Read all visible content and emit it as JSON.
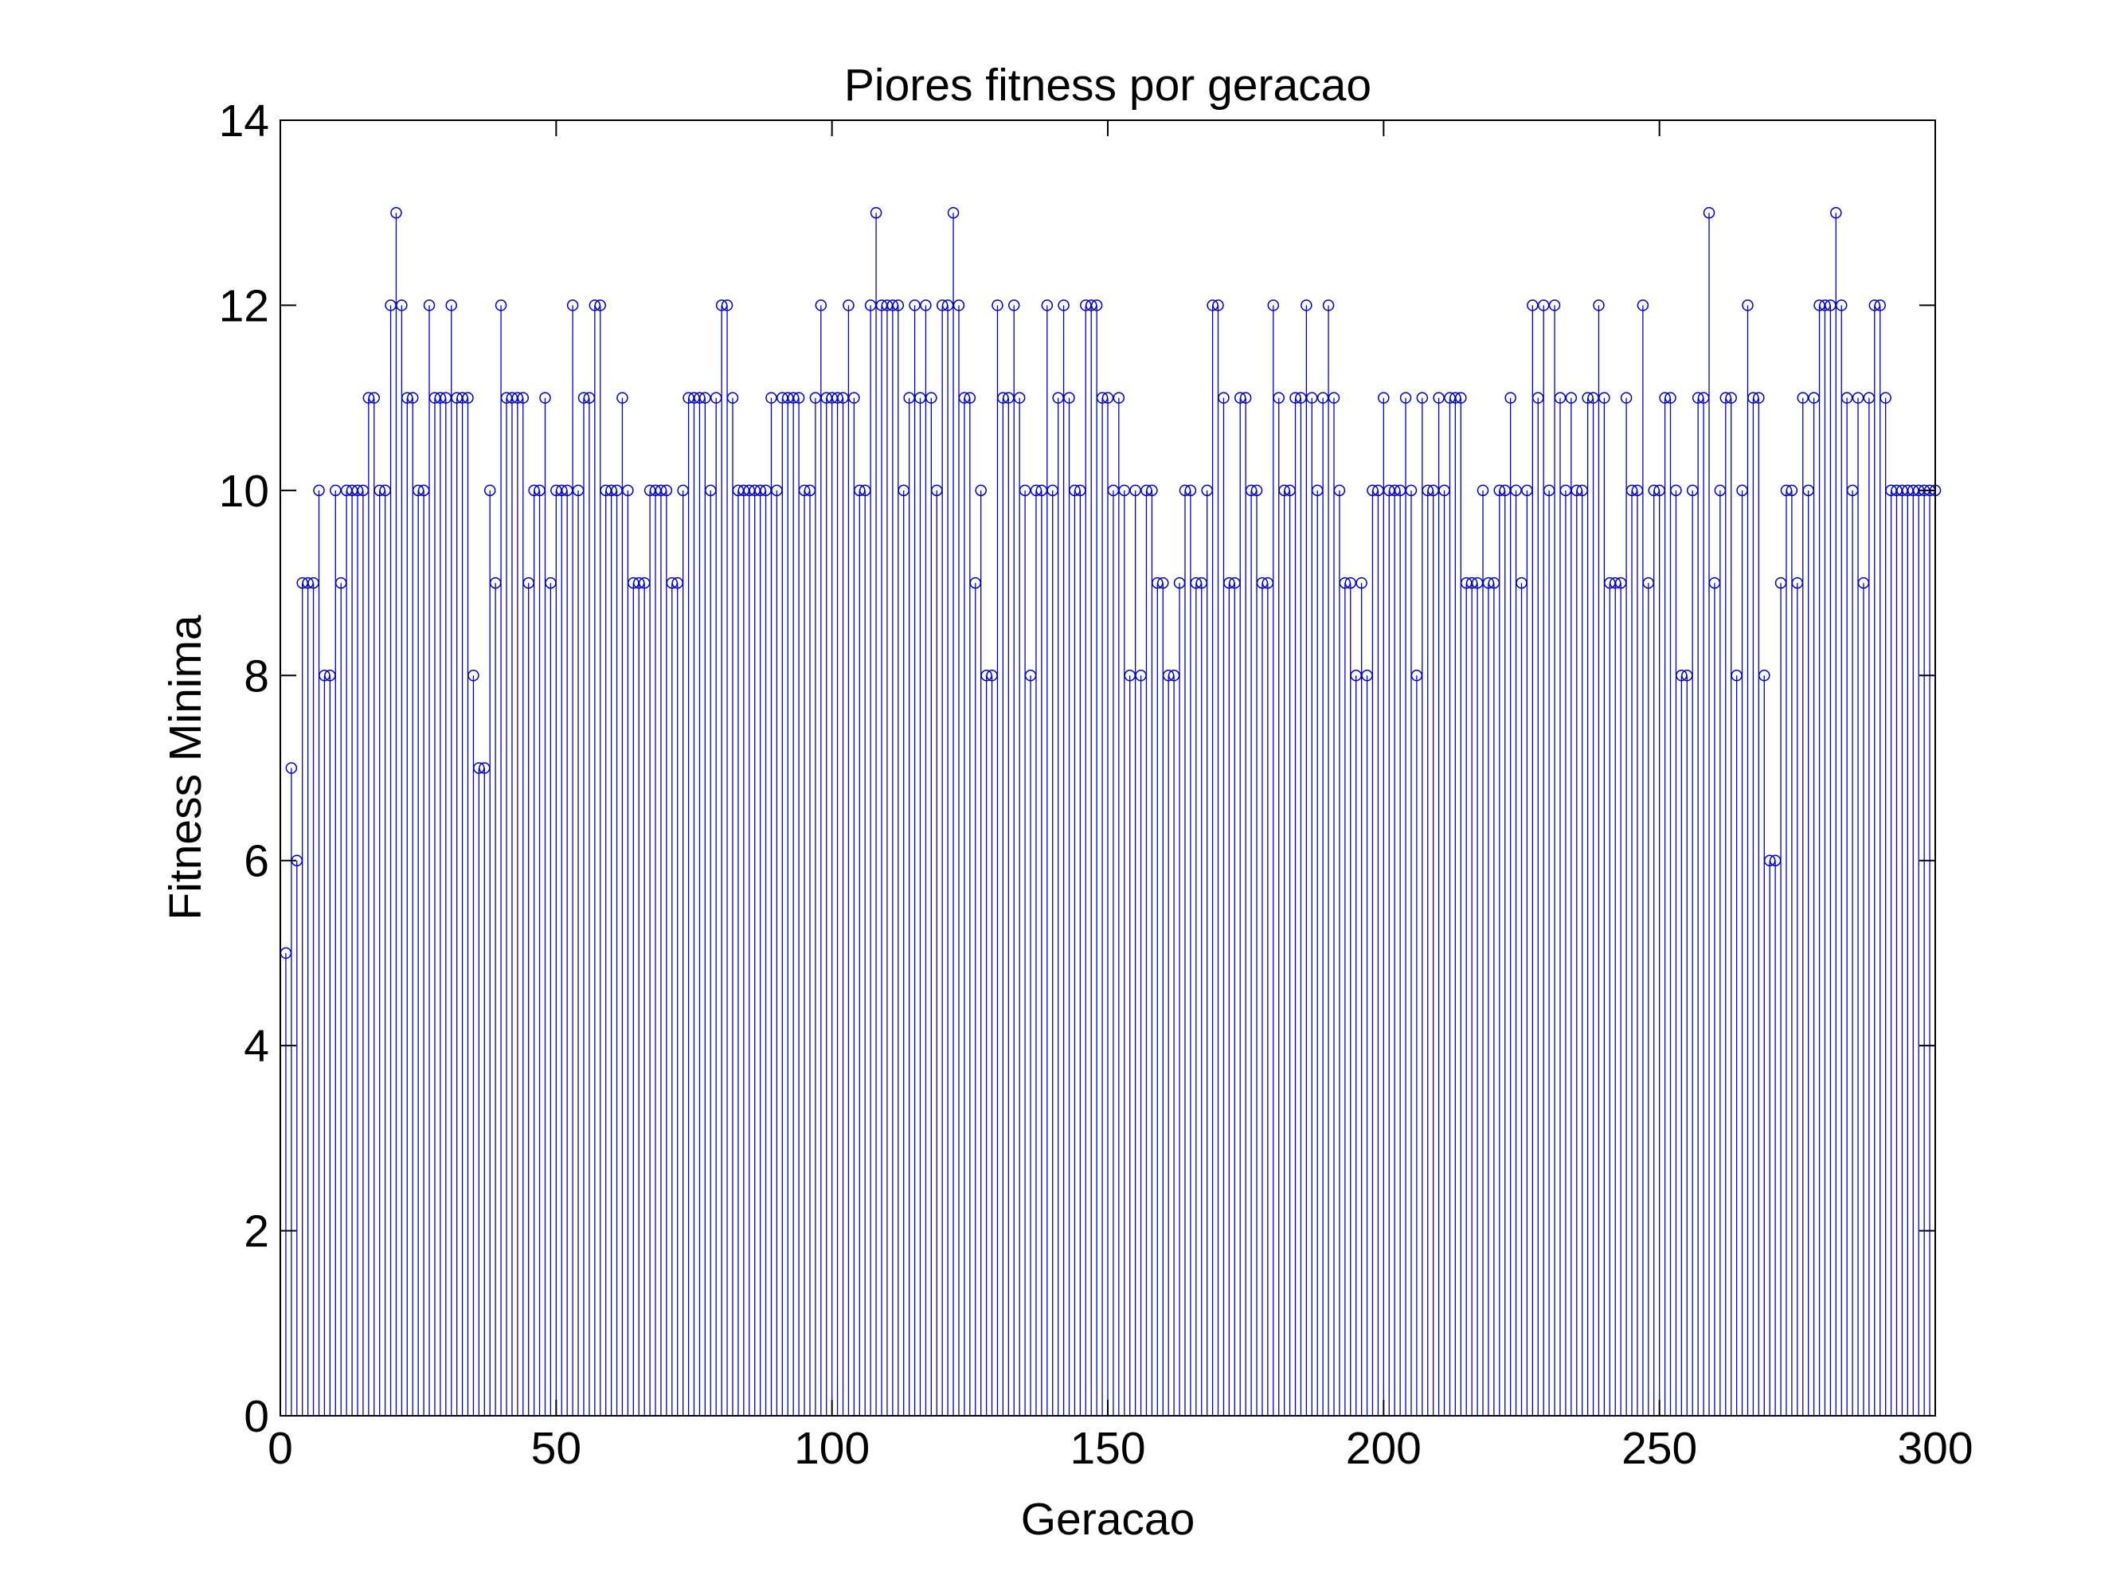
{
  "chart_data": {
    "type": "stem",
    "title": "Piores fitness por geracao",
    "xlabel": "Geracao",
    "ylabel": "Fitness Minima",
    "xlim": [
      0,
      300
    ],
    "ylim": [
      0,
      14
    ],
    "xticks": [
      0,
      50,
      100,
      150,
      200,
      250,
      300
    ],
    "yticks": [
      0,
      2,
      4,
      6,
      8,
      10,
      12,
      14
    ],
    "grid": false,
    "legend": "none",
    "color": "#0000cc",
    "marker": "circle-open",
    "series": [
      {
        "x_start": 1,
        "x_step": 1,
        "values": [
          5,
          7,
          6,
          9,
          9,
          9,
          10,
          8,
          8,
          10,
          9,
          10,
          10,
          10,
          10,
          11,
          11,
          10,
          10,
          12,
          13,
          12,
          11,
          11,
          10,
          10,
          12,
          11,
          11,
          11,
          12,
          11,
          11,
          11,
          8,
          7,
          7,
          10,
          9,
          12,
          11,
          11,
          11,
          11,
          9,
          10,
          10,
          11,
          9,
          10,
          10,
          10,
          12,
          10,
          11,
          11,
          12,
          12,
          10,
          10,
          10,
          11,
          10,
          9,
          9,
          9,
          10,
          10,
          10,
          10,
          9,
          9,
          10,
          11,
          11,
          11,
          11,
          10,
          11,
          12,
          12,
          11,
          10,
          10,
          10,
          10,
          10,
          10,
          11,
          10,
          11,
          11,
          11,
          11,
          10,
          10,
          11,
          12,
          11,
          11,
          11,
          11,
          12,
          11,
          10,
          10,
          12,
          13,
          12,
          12,
          12,
          12,
          10,
          11,
          12,
          11,
          12,
          11,
          10,
          12,
          12,
          13,
          12,
          11,
          11,
          9,
          10,
          8,
          8,
          12,
          11,
          11,
          12,
          11,
          10,
          8,
          10,
          10,
          12,
          10,
          11,
          12,
          11,
          10,
          10,
          12,
          12,
          12,
          11,
          11,
          10,
          11,
          10,
          8,
          10,
          8,
          10,
          10,
          9,
          9,
          8,
          8,
          9,
          10,
          10,
          9,
          9,
          10,
          12,
          12,
          11,
          9,
          9,
          11,
          11,
          10,
          10,
          9,
          9,
          12,
          11,
          10,
          10,
          11,
          11,
          12,
          11,
          10,
          11,
          12,
          11,
          10,
          9,
          9,
          8,
          9,
          8,
          10,
          10,
          11,
          10,
          10,
          10,
          11,
          10,
          8,
          11,
          10,
          10,
          11,
          10,
          11,
          11,
          11,
          9,
          9,
          9,
          10,
          9,
          9,
          10,
          10,
          11,
          10,
          9,
          10,
          12,
          11,
          12,
          10,
          12,
          11,
          10,
          11,
          10,
          10,
          11,
          11,
          12,
          11,
          9,
          9,
          9,
          11,
          10,
          10,
          12,
          9,
          10,
          10,
          11,
          11,
          10,
          8,
          8,
          10,
          11,
          11,
          13,
          9,
          10,
          11,
          11,
          8,
          10,
          12,
          11,
          11,
          8,
          6,
          6,
          9,
          10,
          10,
          9,
          11,
          10,
          11,
          12,
          12,
          12,
          13,
          12,
          11,
          10,
          11,
          9,
          11,
          12,
          12,
          11,
          10,
          10,
          10,
          10,
          10,
          10,
          10,
          10,
          10
        ]
      }
    ]
  }
}
